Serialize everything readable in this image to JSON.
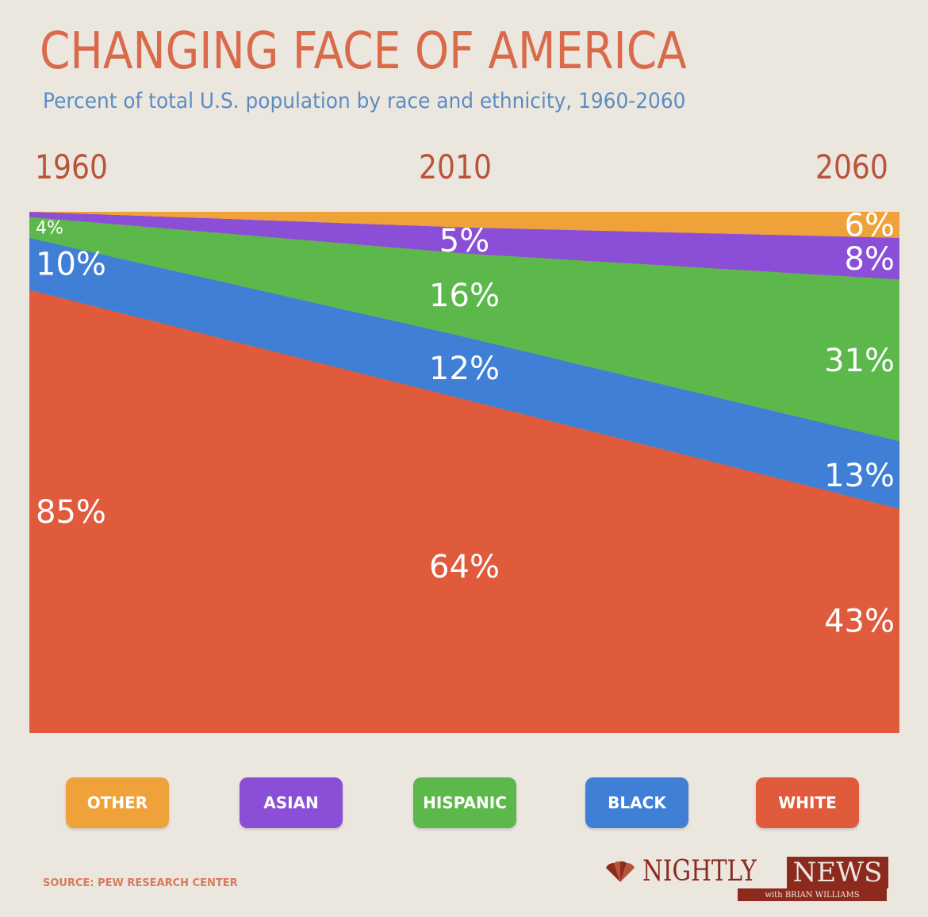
{
  "header": {
    "title": "CHANGING FACE OF AMERICA",
    "subtitle": "Percent of total U.S. population by race and ethnicity, 1960-2060"
  },
  "chart_data": {
    "type": "area",
    "stacked": true,
    "x": [
      1960,
      2010,
      2060
    ],
    "x_tick_labels": [
      "1960",
      "2010",
      "2060"
    ],
    "ylim": [
      0,
      100
    ],
    "series": [
      {
        "name": "WHITE",
        "values": [
          85,
          64,
          43
        ],
        "labels": [
          "85%",
          "64%",
          "43%"
        ],
        "color": "#e05a3c"
      },
      {
        "name": "BLACK",
        "values": [
          10,
          12,
          13
        ],
        "labels": [
          "10%",
          "12%",
          "13%"
        ],
        "color": "#3f7fd6"
      },
      {
        "name": "HISPANIC",
        "values": [
          4,
          16,
          31
        ],
        "labels": [
          "4%",
          "16%",
          "31%"
        ],
        "color": "#5cb84a"
      },
      {
        "name": "ASIAN",
        "values": [
          1,
          5,
          8
        ],
        "labels": [
          "",
          "5%",
          "8%"
        ],
        "color": "#8a4fd6"
      },
      {
        "name": "OTHER",
        "values": [
          0,
          3,
          6
        ],
        "labels": [
          "",
          "",
          "6%"
        ],
        "color": "#f0a23a"
      }
    ],
    "legend_placement": "bottom"
  },
  "legend": {
    "items": [
      {
        "label": "OTHER",
        "color": "#f0a23a"
      },
      {
        "label": "ASIAN",
        "color": "#8a4fd6"
      },
      {
        "label": "HISPANIC",
        "color": "#5cb84a"
      },
      {
        "label": "BLACK",
        "color": "#3f7fd6"
      },
      {
        "label": "WHITE",
        "color": "#e05a3c"
      }
    ]
  },
  "footer": {
    "source": "SOURCE: PEW RESEARCH CENTER",
    "logo_nightly": "NIGHTLY",
    "logo_news": "NEWS",
    "logo_sub": "with BRIAN WILLIAMS"
  }
}
